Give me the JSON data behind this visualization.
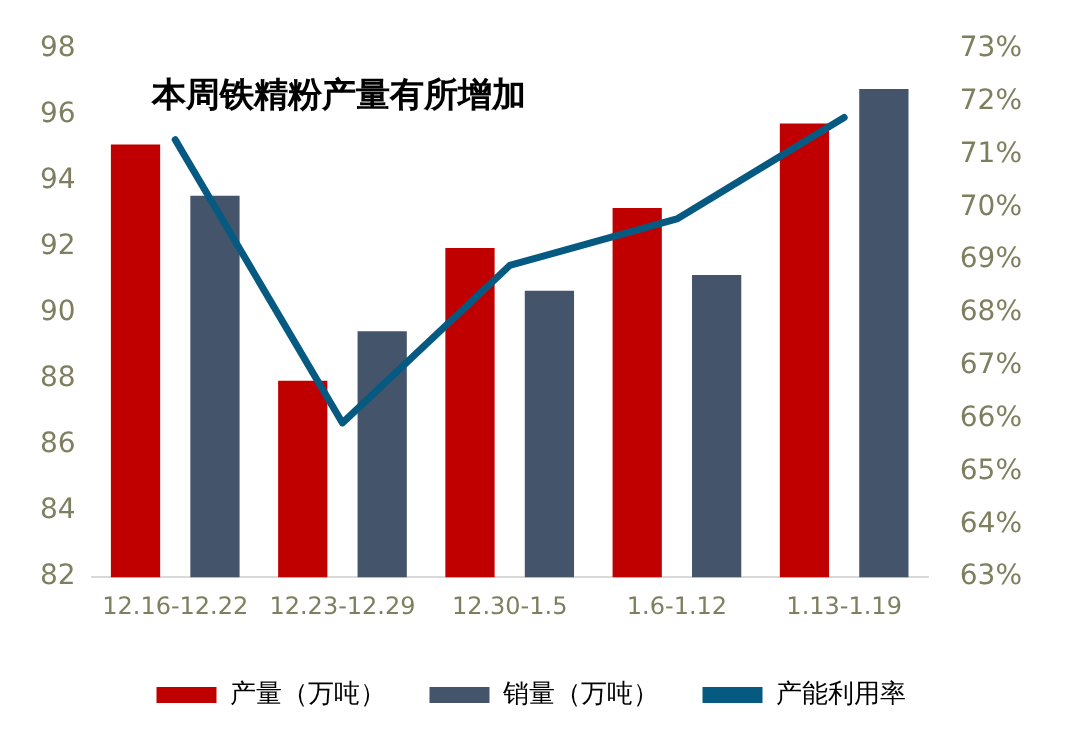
{
  "chart_data": {
    "type": "bar",
    "title": "本周铁精粉产量有所增加",
    "categories": [
      "12.16-12.22",
      "12.23-12.29",
      "12.30-1.5",
      "1.6-1.12",
      "1.13-1.19"
    ],
    "series": [
      {
        "name": "产量（万吨）",
        "color": "#c00000",
        "values": [
          95.1,
          87.95,
          91.97,
          93.18,
          95.74
        ]
      },
      {
        "name": "销量（万吨）",
        "color": "#44546a",
        "values": [
          93.55,
          89.45,
          90.67,
          91.15,
          96.78
        ]
      },
      {
        "name": "产能利用率",
        "type": "line",
        "axis": "y2",
        "color": "#065a82",
        "values": [
          71.28,
          65.92,
          68.9,
          69.78,
          71.7
        ]
      }
    ],
    "ylim": [
      82,
      98
    ],
    "yticks": [
      82,
      84,
      86,
      88,
      90,
      92,
      94,
      96,
      98
    ],
    "y2lim": [
      63,
      73
    ],
    "y2ticks": [
      {
        "value": 63,
        "label": "63%"
      },
      {
        "value": 64,
        "label": "64%"
      },
      {
        "value": 65,
        "label": "65%"
      },
      {
        "value": 66,
        "label": "66%"
      },
      {
        "value": 67,
        "label": "67%"
      },
      {
        "value": 68,
        "label": "68%"
      },
      {
        "value": 69,
        "label": "69%"
      },
      {
        "value": 70,
        "label": "70%"
      },
      {
        "value": 71,
        "label": "71%"
      },
      {
        "value": 72,
        "label": "72%"
      },
      {
        "value": 73,
        "label": "73%"
      }
    ],
    "grid": false,
    "legend": "bottom",
    "marker": "none"
  }
}
